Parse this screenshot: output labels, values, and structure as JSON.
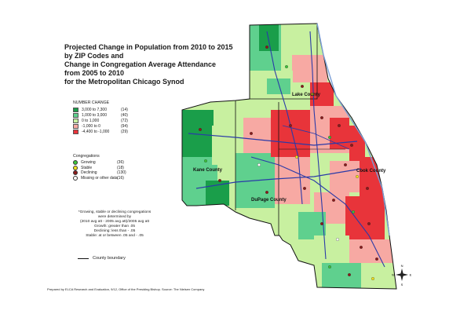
{
  "title_lines": [
    "Projected Change in Population from 2010 to 2015",
    "by ZIP Codes and",
    "Change in Congregation Average Attendance",
    "from 2005 to 2010",
    "for the Metropolitan Chicago Synod"
  ],
  "legend": {
    "title": "NUMBER CHANGE",
    "items": [
      {
        "range": "3,000 to 7,300",
        "count": "(14)",
        "color": "#1a9e4a"
      },
      {
        "range": "1,000 to 3,000",
        "count": "(40)",
        "color": "#5fd08e"
      },
      {
        "range": "0 to 1,000",
        "count": "(72)",
        "color": "#c8f0a0"
      },
      {
        "range": "-1,000 to 0",
        "count": "(94)",
        "color": "#f7a9a3"
      },
      {
        "range": "-4,400 to -1,000",
        "count": "(29)",
        "color": "#e8343a"
      }
    ]
  },
  "congregations": {
    "title": "Congregations",
    "items": [
      {
        "label": "Growing",
        "count": "(36)",
        "color": "#3cc43c"
      },
      {
        "label": "Stable",
        "count": "(18)",
        "color": "#f0e020"
      },
      {
        "label": "Declining",
        "count": "(130)",
        "color": "#8b1a1a"
      },
      {
        "label": "Missing or other data",
        "count": "(16)",
        "color": "#ffffff"
      }
    ]
  },
  "note_lines": [
    "*Growing, stable or declining congregations",
    "were determined by",
    "(2010 avg att - 2005 avg att)/2005 avg att",
    "Growth:  greater than .05",
    "Declining:  less than - .05",
    "Stable:  at or between .05 and - .05"
  ],
  "boundary_label": "County boundary",
  "county_labels": {
    "lake": "Lake County",
    "kane": "Kane County",
    "dupage": "DuPage County",
    "cook": "Cook County"
  },
  "compass": {
    "n": "N",
    "s": "S",
    "e": "E",
    "w": "W"
  },
  "footer": "Prepared by ELCA Research and Evaluation, 9/12, Office of the Presiding Bishop. Source: The Nielsen Company",
  "colors": {
    "dark_green": "#1a9e4a",
    "mid_green": "#5fd08e",
    "light_green": "#c8f0a0",
    "pink": "#f7a9a3",
    "red": "#e8343a",
    "highway": "#2a3aa8",
    "lake_blue": "#7a9ed6"
  }
}
